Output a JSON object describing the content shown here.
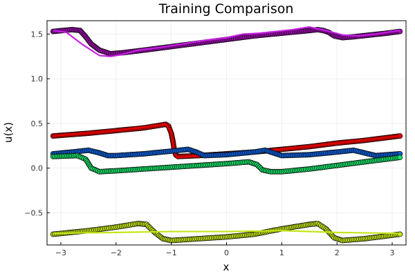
{
  "chart_data": {
    "type": "scatter",
    "title": "Training Comparison",
    "xlabel": "x",
    "ylabel": "u(x)",
    "xlim": [
      -3.25,
      3.25
    ],
    "ylim": [
      -0.86,
      1.65
    ],
    "xticks": [
      -3,
      -2,
      -1,
      0,
      1,
      2,
      3
    ],
    "xtick_labels": [
      "−3",
      "−2",
      "−1",
      "0",
      "1",
      "2",
      "3"
    ],
    "yticks": [
      -0.5,
      0.0,
      0.5,
      1.0,
      1.5
    ],
    "ytick_labels": [
      "−0.5",
      "0.0",
      "0.5",
      "1.0",
      "1.5"
    ],
    "grid": true,
    "legend": "none",
    "series": [
      {
        "kind": "markers",
        "color": "#9b0dab",
        "x": [
          -3.14,
          -2.8,
          -2.65,
          -2.55,
          -2.45,
          -2.3,
          -2.1,
          -1.9,
          -1.5,
          -1.0,
          -0.5,
          0.0,
          0.5,
          1.0,
          1.5,
          1.65,
          1.75,
          1.85,
          1.95,
          2.1,
          2.3,
          2.6,
          2.9,
          3.14
        ],
        "y": [
          1.53,
          1.55,
          1.54,
          1.47,
          1.39,
          1.32,
          1.28,
          1.29,
          1.32,
          1.36,
          1.4,
          1.44,
          1.48,
          1.51,
          1.54,
          1.55,
          1.54,
          1.52,
          1.48,
          1.46,
          1.47,
          1.49,
          1.51,
          1.53
        ]
      },
      {
        "kind": "line",
        "color": "#c821e6",
        "x": [
          -3.14,
          -2.9,
          -2.6,
          -2.3,
          -2.1,
          -1.9,
          -1.6,
          -1.2,
          -0.8,
          -0.4,
          0.0,
          0.3,
          0.6,
          0.9,
          1.2,
          1.5,
          1.8,
          2.1,
          2.4,
          2.7,
          3.0,
          3.14
        ],
        "y": [
          1.54,
          1.52,
          1.38,
          1.26,
          1.25,
          1.27,
          1.32,
          1.35,
          1.39,
          1.43,
          1.46,
          1.5,
          1.51,
          1.53,
          1.55,
          1.58,
          1.54,
          1.49,
          1.48,
          1.5,
          1.53,
          1.54
        ]
      },
      {
        "kind": "markers",
        "color": "#e20000",
        "x": [
          -3.14,
          -2.5,
          -2.0,
          -1.5,
          -1.1,
          -1.05,
          -1.0,
          -0.97,
          -0.95,
          -0.92,
          -0.88,
          -0.5,
          0.0,
          0.5,
          1.0,
          1.5,
          2.0,
          2.5,
          3.14
        ],
        "y": [
          0.36,
          0.39,
          0.42,
          0.45,
          0.49,
          0.47,
          0.39,
          0.3,
          0.22,
          0.15,
          0.13,
          0.14,
          0.16,
          0.18,
          0.21,
          0.24,
          0.28,
          0.31,
          0.36
        ]
      },
      {
        "kind": "line",
        "color": "#e20000",
        "x": [
          -3.14,
          -2.0,
          -1.1,
          -1.0,
          -0.95,
          -0.9,
          0.0,
          1.0,
          2.0,
          3.14
        ],
        "y": [
          0.36,
          0.42,
          0.49,
          0.4,
          0.2,
          0.12,
          0.16,
          0.21,
          0.28,
          0.36
        ]
      },
      {
        "kind": "markers",
        "color": "#0f5fd9",
        "x": [
          -3.14,
          -2.8,
          -2.5,
          -2.3,
          -2.15,
          -2.0,
          -1.5,
          -1.0,
          -0.7,
          -0.55,
          -0.4,
          0.0,
          0.5,
          0.7,
          0.85,
          1.0,
          1.5,
          2.0,
          2.3,
          2.5,
          2.7,
          3.14
        ],
        "y": [
          0.16,
          0.18,
          0.2,
          0.17,
          0.14,
          0.14,
          0.16,
          0.19,
          0.21,
          0.18,
          0.14,
          0.15,
          0.18,
          0.2,
          0.17,
          0.14,
          0.15,
          0.18,
          0.2,
          0.17,
          0.14,
          0.16
        ]
      },
      {
        "kind": "markers",
        "color": "#18e068",
        "x": [
          -3.14,
          -2.7,
          -2.55,
          -2.45,
          -2.3,
          -2.0,
          -1.5,
          -1.0,
          -0.5,
          0.0,
          0.4,
          0.55,
          0.65,
          0.8,
          1.0,
          1.5,
          2.0,
          2.5,
          3.14
        ],
        "y": [
          0.13,
          0.14,
          0.1,
          0.0,
          -0.04,
          -0.03,
          -0.01,
          0.01,
          0.03,
          0.05,
          0.07,
          0.04,
          -0.02,
          -0.04,
          -0.04,
          -0.01,
          0.03,
          0.07,
          0.12
        ]
      },
      {
        "kind": "markers",
        "color": "#c4e617",
        "x": [
          -3.14,
          -2.5,
          -2.0,
          -1.6,
          -1.45,
          -1.3,
          -1.15,
          -1.0,
          -0.5,
          0.0,
          0.5,
          1.0,
          1.5,
          1.65,
          1.8,
          1.95,
          2.1,
          2.5,
          3.14
        ],
        "y": [
          -0.74,
          -0.7,
          -0.66,
          -0.62,
          -0.63,
          -0.72,
          -0.79,
          -0.81,
          -0.79,
          -0.77,
          -0.74,
          -0.68,
          -0.63,
          -0.62,
          -0.68,
          -0.78,
          -0.81,
          -0.79,
          -0.74
        ]
      },
      {
        "kind": "line",
        "color": "#c4e617",
        "x": [
          -3.14,
          -2.0,
          -1.0,
          0.0,
          1.0,
          2.0,
          3.14
        ],
        "y": [
          -0.73,
          -0.72,
          -0.71,
          -0.71,
          -0.7,
          -0.72,
          -0.73
        ]
      }
    ]
  }
}
